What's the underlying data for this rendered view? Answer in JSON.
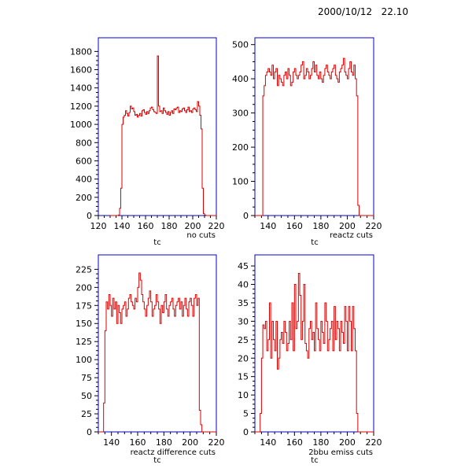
{
  "header": {
    "datestamp": "2000/10/12   22.10"
  },
  "colors": {
    "frame": "#0000cc",
    "histogram": "#dd0000",
    "text": "#000000"
  },
  "chart_data": [
    {
      "type": "bar",
      "title": "no cuts",
      "xlabel": "tc",
      "xlim": [
        120,
        220
      ],
      "ylim": [
        0,
        1950
      ],
      "xticks": [
        120,
        140,
        160,
        180,
        200,
        220
      ],
      "yticks": [
        0,
        200,
        400,
        600,
        800,
        1000,
        1200,
        1400,
        1600,
        1800
      ],
      "bin_start": 130,
      "bin_width": 1,
      "values": [
        0,
        0,
        0,
        0,
        0,
        0,
        0,
        5,
        80,
        300,
        1000,
        1080,
        1100,
        1150,
        1120,
        1090,
        1130,
        1200,
        1170,
        1180,
        1140,
        1100,
        1110,
        1080,
        1100,
        1120,
        1090,
        1150,
        1160,
        1130,
        1110,
        1140,
        1120,
        1150,
        1180,
        1190,
        1160,
        1140,
        1130,
        1120,
        1750,
        1200,
        1140,
        1150,
        1120,
        1180,
        1150,
        1130,
        1110,
        1140,
        1100,
        1130,
        1150,
        1120,
        1170,
        1160,
        1180,
        1190,
        1130,
        1150,
        1140,
        1170,
        1180,
        1150,
        1130,
        1160,
        1190,
        1140,
        1150,
        1130,
        1170,
        1180,
        1160,
        1140,
        1250,
        1200,
        1100,
        950,
        300,
        20,
        5,
        0,
        0,
        0,
        0,
        0,
        0,
        0,
        0,
        0
      ]
    },
    {
      "type": "bar",
      "title": "reactz cuts",
      "xlabel": "tc",
      "xlim": [
        130,
        220
      ],
      "ylim": [
        0,
        520
      ],
      "xticks": [
        140,
        160,
        180,
        200,
        220
      ],
      "yticks": [
        0,
        100,
        200,
        300,
        400,
        500
      ],
      "bin_start": 130,
      "bin_width": 1,
      "values": [
        0,
        0,
        0,
        0,
        0,
        0,
        350,
        380,
        410,
        420,
        430,
        420,
        410,
        440,
        400,
        420,
        430,
        380,
        410,
        400,
        390,
        380,
        410,
        420,
        400,
        430,
        410,
        380,
        390,
        420,
        430,
        410,
        400,
        410,
        420,
        440,
        450,
        400,
        410,
        430,
        420,
        400,
        410,
        430,
        450,
        420,
        440,
        410,
        400,
        420,
        400,
        390,
        410,
        430,
        440,
        420,
        410,
        400,
        420,
        430,
        440,
        410,
        400,
        390,
        420,
        430,
        440,
        460,
        420,
        410,
        400,
        430,
        450,
        420,
        410,
        440,
        400,
        350,
        30,
        0,
        0,
        0,
        0,
        0,
        0,
        0,
        0,
        0,
        0,
        0
      ]
    },
    {
      "type": "bar",
      "title": "reactz difference cuts",
      "xlabel": "tc",
      "xlim": [
        130,
        220
      ],
      "ylim": [
        0,
        245
      ],
      "xticks": [
        140,
        160,
        180,
        200,
        220
      ],
      "yticks": [
        0,
        25,
        50,
        75,
        100,
        125,
        150,
        175,
        200,
        225
      ],
      "bin_start": 130,
      "bin_width": 1,
      "values": [
        0,
        0,
        0,
        0,
        40,
        140,
        180,
        170,
        190,
        175,
        160,
        185,
        170,
        180,
        150,
        175,
        165,
        150,
        170,
        175,
        180,
        160,
        170,
        185,
        190,
        180,
        175,
        170,
        185,
        180,
        200,
        220,
        210,
        190,
        180,
        170,
        160,
        175,
        185,
        195,
        180,
        160,
        170,
        175,
        190,
        180,
        170,
        150,
        175,
        165,
        180,
        190,
        170,
        160,
        175,
        180,
        185,
        170,
        160,
        175,
        180,
        185,
        170,
        180,
        160,
        175,
        185,
        170,
        160,
        180,
        185,
        175,
        160,
        185,
        190,
        175,
        185,
        30,
        10,
        0,
        0,
        0,
        0,
        0,
        0,
        0,
        0,
        0,
        0,
        0
      ]
    },
    {
      "type": "bar",
      "title": "2bbu emiss cuts",
      "xlabel": "tc",
      "xlim": [
        130,
        220
      ],
      "ylim": [
        0,
        48
      ],
      "xticks": [
        140,
        160,
        180,
        200,
        220
      ],
      "yticks": [
        0,
        5,
        10,
        15,
        20,
        25,
        30,
        35,
        40,
        45
      ],
      "bin_start": 130,
      "bin_width": 1,
      "values": [
        0,
        0,
        0,
        0,
        5,
        20,
        29,
        28,
        30,
        22,
        25,
        35,
        20,
        30,
        25,
        22,
        30,
        17,
        20,
        25,
        27,
        24,
        30,
        27,
        22,
        24,
        30,
        25,
        35,
        22,
        40,
        28,
        30,
        43,
        37,
        25,
        30,
        40,
        24,
        22,
        20,
        28,
        30,
        25,
        27,
        22,
        35,
        28,
        25,
        22,
        30,
        27,
        24,
        35,
        30,
        22,
        25,
        28,
        30,
        22,
        34,
        25,
        30,
        28,
        22,
        30,
        27,
        24,
        34,
        30,
        22,
        34,
        30,
        22,
        34,
        28,
        22,
        5,
        0,
        0,
        0,
        0,
        0,
        0,
        0,
        0,
        0,
        0,
        0,
        0
      ]
    }
  ]
}
